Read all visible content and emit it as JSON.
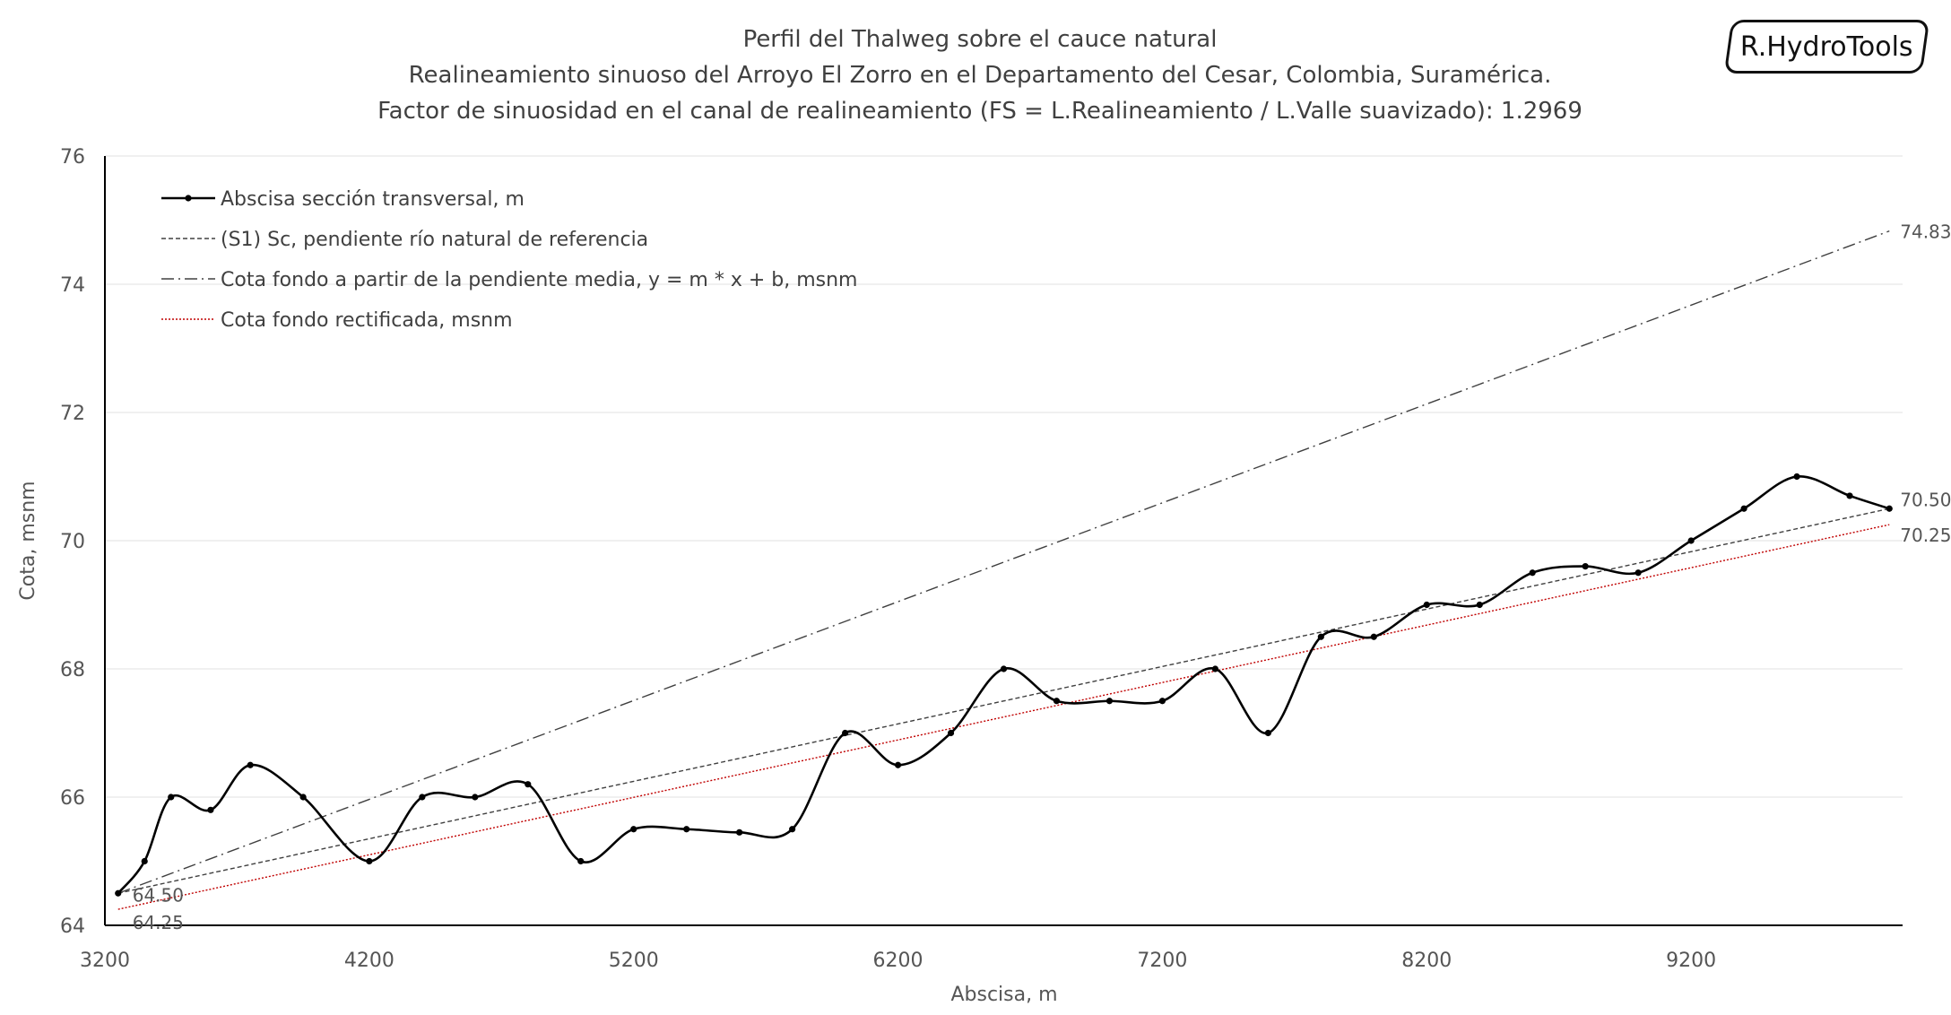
{
  "branding": {
    "logo_text": "R.HydroTools"
  },
  "chart_data": {
    "type": "line",
    "title": [
      "Perfil del Thalweg sobre el cauce natural",
      "Realineamiento sinuoso del Arroyo El Zorro en el Departamento del Cesar, Colombia, Suramérica.",
      "Factor de sinuosidad en el canal de realineamiento (FS = L.Realineamiento / L.Valle suavizado): 1.2969"
    ],
    "xlabel": "Abscisa, m",
    "ylabel": "Cota, msnm",
    "xlim": [
      3200,
      10000
    ],
    "ylim": [
      64,
      76
    ],
    "x_ticks": [
      "3200",
      "4200",
      "5200",
      "6200",
      "7200",
      "8200",
      "9200"
    ],
    "y_ticks": [
      "64",
      "66",
      "68",
      "70",
      "72",
      "74",
      "76"
    ],
    "grid": "horizontal",
    "legend_position": "top-left",
    "series": [
      {
        "name": "Abscisa sección transversal, m",
        "style": "solid-markers",
        "color": "#000000",
        "x": [
          3250,
          3350,
          3450,
          3600,
          3750,
          3950,
          4200,
          4400,
          4600,
          4800,
          5000,
          5200,
          5400,
          5600,
          5800,
          6000,
          6200,
          6400,
          6600,
          6800,
          7000,
          7200,
          7400,
          7600,
          7800,
          8000,
          8200,
          8400,
          8600,
          8800,
          9000,
          9200,
          9400,
          9600,
          9800,
          9950
        ],
        "y": [
          64.5,
          65.0,
          66.0,
          65.8,
          66.5,
          66.0,
          65.0,
          66.0,
          66.0,
          66.2,
          65.0,
          65.5,
          65.5,
          65.45,
          65.5,
          67.0,
          66.5,
          67.0,
          68.0,
          67.5,
          67.5,
          67.5,
          68.0,
          67.0,
          68.5,
          68.5,
          69.0,
          69.0,
          69.5,
          69.6,
          69.5,
          70.0,
          70.5,
          71.0,
          70.7,
          70.5
        ]
      },
      {
        "name": "(S1) Sc, pendiente río natural de referencia",
        "style": "dashed",
        "color": "#404040",
        "x": [
          3250,
          9950
        ],
        "y": [
          64.5,
          70.5
        ],
        "start_label": "64.50",
        "end_label": "70.50"
      },
      {
        "name": "Cota fondo a partir de la pendiente media, y = m * x + b, msnm",
        "style": "dash-dot",
        "color": "#404040",
        "x": [
          3250,
          9950
        ],
        "y": [
          64.5,
          74.83
        ],
        "end_label": "74.83"
      },
      {
        "name": "Cota fondo rectificada, msnm",
        "style": "dotted",
        "color": "#c00000",
        "x": [
          3250,
          9950
        ],
        "y": [
          64.25,
          70.25
        ],
        "start_label": "64.25",
        "end_label": "70.25"
      }
    ]
  }
}
